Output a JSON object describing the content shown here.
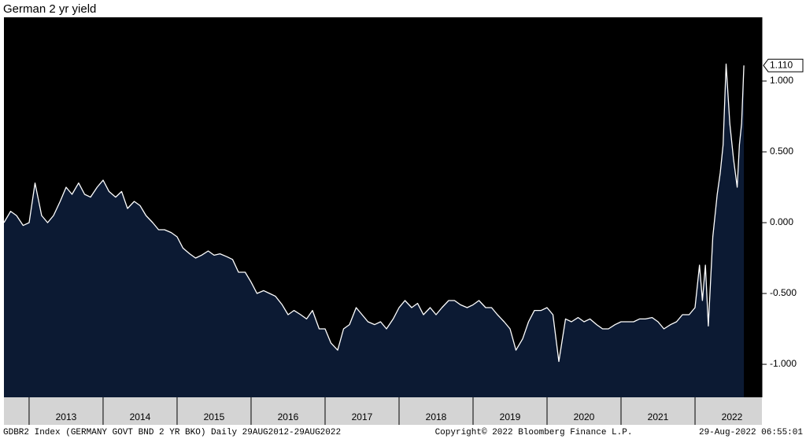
{
  "chart_data": {
    "type": "area",
    "title": "German 2 yr yield",
    "footer_left": "GDBR2 Index (GERMANY GOVT BND 2 YR BKO)  Daily 29AUG2012-29AUG2022",
    "footer_center": "Copyright© 2022 Bloomberg Finance L.P.",
    "footer_right": "29-Aug-2022 06:55:01",
    "last_value_label": "1.110",
    "line_color": "#ffffff",
    "fill_color": "#0c1a33",
    "x": [
      2012.66,
      2012.75,
      2012.83,
      2012.92,
      2013.0,
      2013.08,
      2013.17,
      2013.25,
      2013.33,
      2013.42,
      2013.5,
      2013.58,
      2013.67,
      2013.75,
      2013.83,
      2013.92,
      2014.0,
      2014.08,
      2014.17,
      2014.25,
      2014.33,
      2014.42,
      2014.5,
      2014.58,
      2014.67,
      2014.75,
      2014.83,
      2014.92,
      2015.0,
      2015.08,
      2015.17,
      2015.25,
      2015.33,
      2015.42,
      2015.5,
      2015.58,
      2015.67,
      2015.75,
      2015.83,
      2015.92,
      2016.0,
      2016.08,
      2016.17,
      2016.25,
      2016.33,
      2016.42,
      2016.5,
      2016.58,
      2016.67,
      2016.75,
      2016.83,
      2016.92,
      2017.0,
      2017.08,
      2017.17,
      2017.25,
      2017.33,
      2017.42,
      2017.5,
      2017.58,
      2017.67,
      2017.75,
      2017.83,
      2017.92,
      2018.0,
      2018.08,
      2018.17,
      2018.25,
      2018.33,
      2018.42,
      2018.5,
      2018.58,
      2018.67,
      2018.75,
      2018.83,
      2018.92,
      2019.0,
      2019.08,
      2019.17,
      2019.25,
      2019.33,
      2019.42,
      2019.5,
      2019.58,
      2019.67,
      2019.75,
      2019.83,
      2019.92,
      2020.0,
      2020.08,
      2020.16,
      2020.25,
      2020.33,
      2020.42,
      2020.5,
      2020.58,
      2020.67,
      2020.75,
      2020.83,
      2020.92,
      2021.0,
      2021.08,
      2021.17,
      2021.25,
      2021.33,
      2021.42,
      2021.5,
      2021.58,
      2021.67,
      2021.75,
      2021.83,
      2021.92,
      2022.0,
      2022.06,
      2022.1,
      2022.14,
      2022.18,
      2022.24,
      2022.3,
      2022.34,
      2022.38,
      2022.42,
      2022.47,
      2022.52,
      2022.57,
      2022.6,
      2022.63,
      2022.66
    ],
    "values": [
      0.0,
      0.08,
      0.05,
      -0.02,
      0.0,
      0.28,
      0.05,
      0.0,
      0.05,
      0.15,
      0.25,
      0.2,
      0.28,
      0.2,
      0.18,
      0.25,
      0.3,
      0.22,
      0.18,
      0.22,
      0.1,
      0.15,
      0.12,
      0.05,
      0.0,
      -0.05,
      -0.05,
      -0.07,
      -0.1,
      -0.18,
      -0.22,
      -0.25,
      -0.23,
      -0.2,
      -0.23,
      -0.22,
      -0.24,
      -0.26,
      -0.35,
      -0.35,
      -0.42,
      -0.5,
      -0.48,
      -0.5,
      -0.52,
      -0.58,
      -0.65,
      -0.62,
      -0.65,
      -0.68,
      -0.62,
      -0.75,
      -0.75,
      -0.85,
      -0.9,
      -0.75,
      -0.72,
      -0.6,
      -0.65,
      -0.7,
      -0.72,
      -0.7,
      -0.75,
      -0.68,
      -0.6,
      -0.55,
      -0.6,
      -0.57,
      -0.65,
      -0.6,
      -0.65,
      -0.6,
      -0.55,
      -0.55,
      -0.58,
      -0.6,
      -0.58,
      -0.55,
      -0.6,
      -0.6,
      -0.65,
      -0.7,
      -0.75,
      -0.9,
      -0.82,
      -0.7,
      -0.62,
      -0.62,
      -0.6,
      -0.65,
      -0.98,
      -0.68,
      -0.7,
      -0.67,
      -0.7,
      -0.68,
      -0.72,
      -0.75,
      -0.75,
      -0.72,
      -0.7,
      -0.7,
      -0.7,
      -0.68,
      -0.68,
      -0.67,
      -0.7,
      -0.75,
      -0.72,
      -0.7,
      -0.65,
      -0.65,
      -0.6,
      -0.3,
      -0.55,
      -0.3,
      -0.73,
      -0.1,
      0.2,
      0.35,
      0.55,
      1.12,
      0.7,
      0.45,
      0.25,
      0.55,
      0.7,
      1.11
    ],
    "xlim": [
      2012.66,
      2022.904
    ],
    "ylim": [
      -1.233,
      1.45
    ],
    "year_bounds": [
      2013,
      2014,
      2015,
      2016,
      2017,
      2018,
      2019,
      2020,
      2021,
      2022
    ],
    "xticks": [
      {
        "value": 2013.5,
        "label": "2013"
      },
      {
        "value": 2014.5,
        "label": "2014"
      },
      {
        "value": 2015.5,
        "label": "2015"
      },
      {
        "value": 2016.5,
        "label": "2016"
      },
      {
        "value": 2017.5,
        "label": "2017"
      },
      {
        "value": 2018.5,
        "label": "2018"
      },
      {
        "value": 2019.5,
        "label": "2019"
      },
      {
        "value": 2020.5,
        "label": "2020"
      },
      {
        "value": 2021.5,
        "label": "2021"
      },
      {
        "value": 2022.5,
        "label": "2022"
      }
    ],
    "yticks": [
      {
        "value": 1,
        "label": "1.000"
      },
      {
        "value": 0.5,
        "label": "0.500"
      },
      {
        "value": 0,
        "label": "0.000"
      },
      {
        "value": -0.5,
        "label": "-0.500"
      },
      {
        "value": -1,
        "label": "-1.000"
      }
    ]
  }
}
